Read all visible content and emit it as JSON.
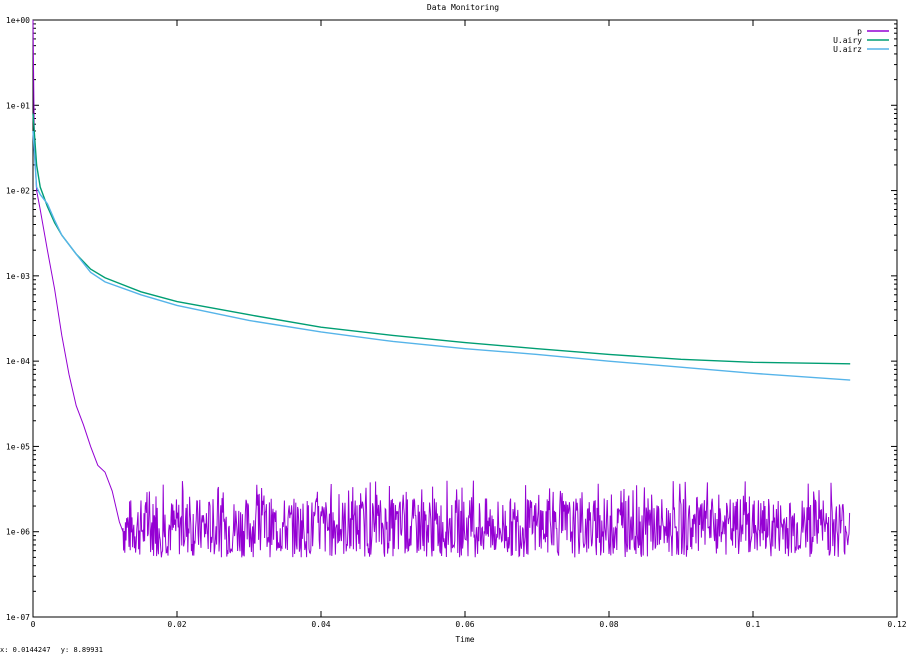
{
  "chart_data": {
    "type": "line",
    "title": "Data Monitoring",
    "xlabel": "Time",
    "ylabel": "",
    "xlim": [
      0,
      0.12
    ],
    "ylim": [
      1e-07,
      1
    ],
    "yscale": "log",
    "grid": false,
    "legend_position": "top-right",
    "x_ticks": [
      {
        "value": 0,
        "label": "0"
      },
      {
        "value": 0.02,
        "label": "0.02"
      },
      {
        "value": 0.04,
        "label": "0.04"
      },
      {
        "value": 0.06,
        "label": "0.06"
      },
      {
        "value": 0.08,
        "label": "0.08"
      },
      {
        "value": 0.1,
        "label": "0.1"
      },
      {
        "value": 0.12,
        "label": "0.12"
      }
    ],
    "y_ticks": [
      {
        "value": 1e-07,
        "label": "1e-07"
      },
      {
        "value": 1e-06,
        "label": "1e-06"
      },
      {
        "value": 1e-05,
        "label": "1e-05"
      },
      {
        "value": 0.0001,
        "label": "1e-04"
      },
      {
        "value": 0.001,
        "label": "1e-03"
      },
      {
        "value": 0.01,
        "label": "1e-02"
      },
      {
        "value": 0.1,
        "label": "1e-01"
      },
      {
        "value": 1,
        "label": "1e+00"
      }
    ],
    "series": [
      {
        "name": "p",
        "color": "#9400d3",
        "noise_floor": {
          "from_x": 0.0125,
          "to_x": 0.1135,
          "y_low": 5e-07,
          "y_high": 2.5e-06,
          "spike_high": 4e-06
        },
        "x": [
          0,
          0.0002,
          0.0005,
          0.001,
          0.002,
          0.003,
          0.004,
          0.005,
          0.006,
          0.007,
          0.008,
          0.009,
          0.01,
          0.011,
          0.012,
          0.0125
        ],
        "y": [
          1.0,
          0.03,
          0.01,
          0.006,
          0.002,
          0.0007,
          0.0002,
          7e-05,
          3e-05,
          1.8e-05,
          1e-05,
          6e-06,
          5e-06,
          3e-06,
          1.3e-06,
          1e-06
        ]
      },
      {
        "name": "U.airy",
        "color": "#009e73",
        "x": [
          0,
          0.0005,
          0.001,
          0.002,
          0.003,
          0.004,
          0.006,
          0.008,
          0.01,
          0.015,
          0.02,
          0.03,
          0.04,
          0.05,
          0.06,
          0.07,
          0.08,
          0.09,
          0.1,
          0.1135
        ],
        "y": [
          0.08,
          0.02,
          0.011,
          0.0065,
          0.0042,
          0.003,
          0.0018,
          0.0012,
          0.00095,
          0.00065,
          0.0005,
          0.00035,
          0.00025,
          0.0002,
          0.000165,
          0.00014,
          0.00012,
          0.000105,
          9.7e-05,
          9.3e-05
        ]
      },
      {
        "name": "U.airz",
        "color": "#56b4e9",
        "x": [
          0,
          0.0005,
          0.001,
          0.002,
          0.003,
          0.004,
          0.006,
          0.008,
          0.01,
          0.015,
          0.02,
          0.03,
          0.04,
          0.05,
          0.06,
          0.07,
          0.08,
          0.09,
          0.1,
          0.1135
        ],
        "y": [
          0.05,
          0.011,
          0.009,
          0.007,
          0.0045,
          0.003,
          0.0018,
          0.0011,
          0.00085,
          0.0006,
          0.00045,
          0.0003,
          0.00022,
          0.00017,
          0.00014,
          0.00012,
          0.0001,
          8.5e-05,
          7.2e-05,
          6e-05
        ]
      }
    ]
  },
  "status": {
    "x_readout": "x: 0.0144247",
    "y_readout": "y: 8.89931"
  }
}
